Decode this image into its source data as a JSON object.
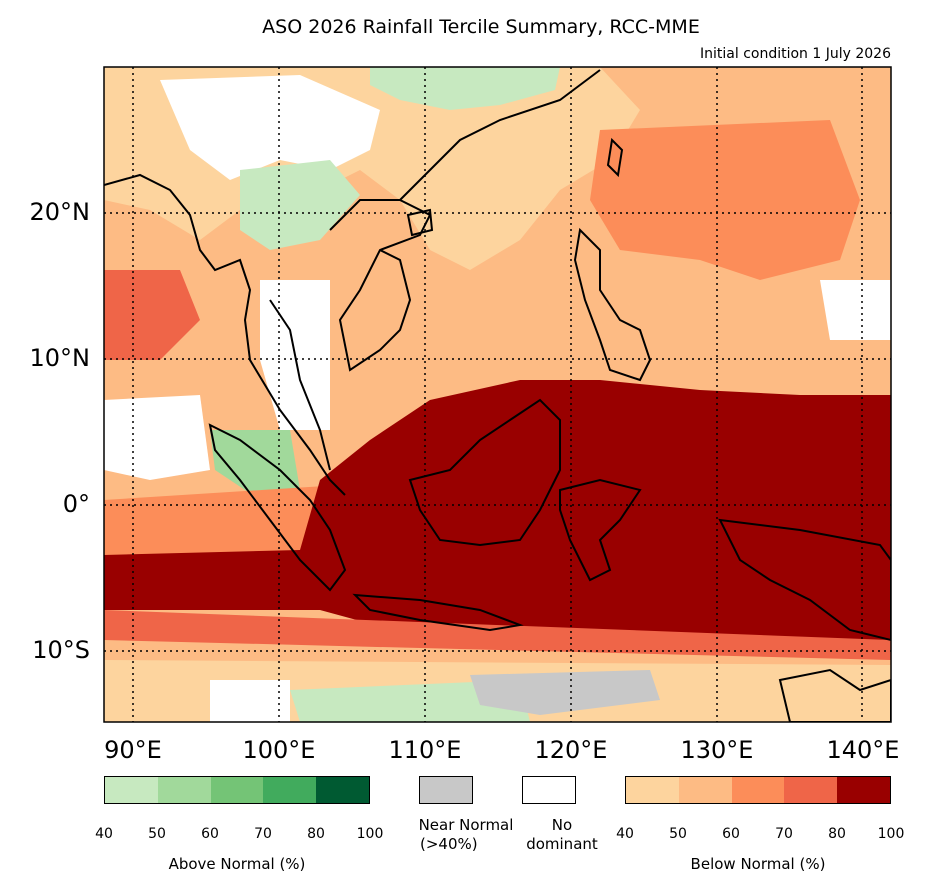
{
  "title": "ASO 2026 Rainfall Tercile Summary, RCC-MME",
  "subtitle": "Initial condition 1 July 2026",
  "lat_labels": [
    "20°N",
    "10°N",
    "0°",
    "10°S"
  ],
  "lon_labels": [
    "90°E",
    "100°E",
    "110°E",
    "120°E",
    "130°E",
    "140°E"
  ],
  "legend": {
    "above_normal": {
      "caption": "Above Normal (%)",
      "ticks": [
        "40",
        "50",
        "60",
        "70",
        "80",
        "100"
      ],
      "colors": [
        "#c7e9c0",
        "#a1d99b",
        "#74c476",
        "#41ab5d",
        "#005a32"
      ]
    },
    "near_normal": {
      "caption_line1": "Near Normal",
      "caption_line2": "(>40%)",
      "color": "#c8c8c8"
    },
    "no_dominant": {
      "caption_line1": "No",
      "caption_line2": "dominant",
      "color": "#ffffff"
    },
    "below_normal": {
      "caption": "Below Normal (%)",
      "ticks": [
        "40",
        "50",
        "60",
        "70",
        "80",
        "100"
      ],
      "colors": [
        "#fdd49e",
        "#fdbb84",
        "#fc8d59",
        "#ef6548",
        "#990000"
      ]
    }
  }
}
